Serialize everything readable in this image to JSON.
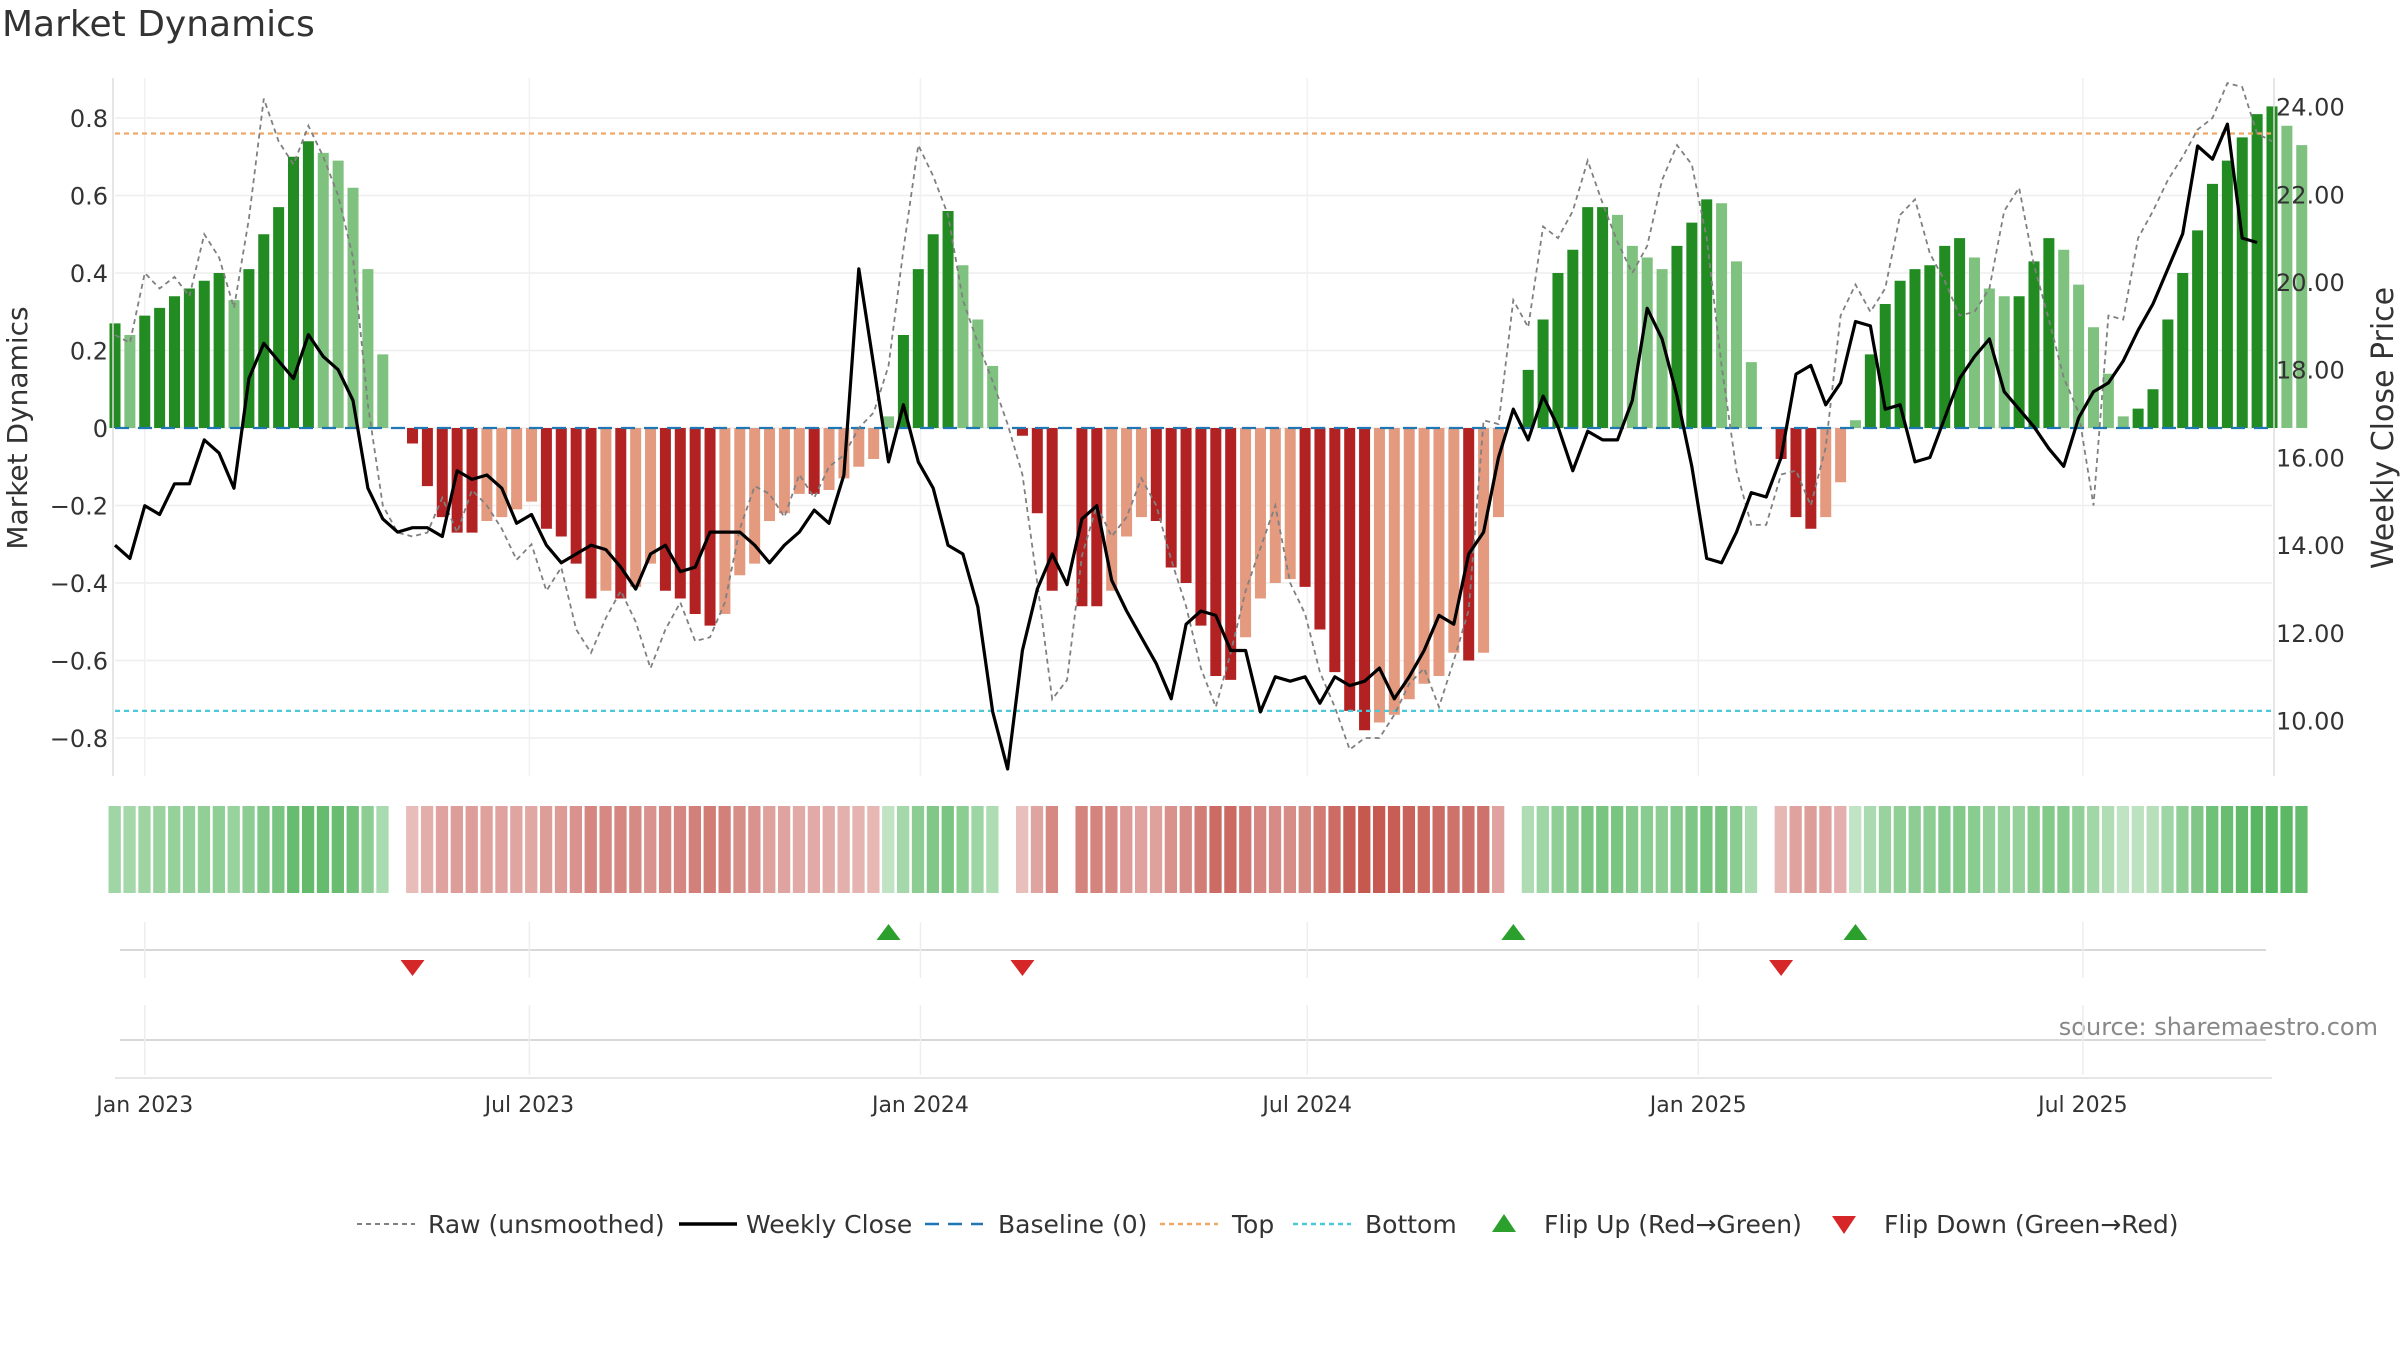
{
  "chart_data": {
    "type": "bar",
    "title": "Market Dynamics",
    "source_note": "source: sharemaestro.com",
    "left_axis": {
      "label": "Market Dynamics",
      "ticks": [
        "0.8",
        "0.6",
        "0.4",
        "0.2",
        "0",
        "−0.2",
        "−0.4",
        "−0.6",
        "−0.8"
      ],
      "tick_values": [
        0.8,
        0.6,
        0.4,
        0.2,
        0,
        -0.2,
        -0.4,
        -0.6,
        -0.8
      ],
      "range": [
        -0.9,
        0.9
      ]
    },
    "right_axis": {
      "label": "Weekly Close Price",
      "ticks": [
        "24.00",
        "22.00",
        "20.00",
        "18.00",
        "16.00",
        "14.00",
        "12.00",
        "10.00"
      ],
      "tick_values": [
        24,
        22,
        20,
        18,
        16,
        14,
        12,
        10
      ],
      "range": [
        8.74,
        24.65
      ]
    },
    "x_axis": {
      "ticks": [
        "Jan 2023",
        "Jul 2023",
        "Jan 2024",
        "Jul 2024",
        "Jan 2025",
        "Jul 2025"
      ],
      "tick_dates": [
        "2023-01-01",
        "2023-07-01",
        "2024-01-01",
        "2024-07-01",
        "2025-01-01",
        "2025-07-01"
      ],
      "range": [
        "2022-12-18",
        "2025-09-28"
      ]
    },
    "levels": {
      "top": 0.76,
      "bottom": -0.73,
      "baseline": 0
    },
    "start_week": "2022-12-18",
    "bars": [
      0.27,
      0.24,
      0.29,
      0.31,
      0.34,
      0.36,
      0.38,
      0.4,
      0.33,
      0.41,
      0.5,
      0.57,
      0.7,
      0.74,
      0.71,
      0.69,
      0.62,
      0.41,
      0.19,
      0.0,
      -0.04,
      -0.15,
      -0.23,
      -0.27,
      -0.27,
      -0.24,
      -0.23,
      -0.21,
      -0.19,
      -0.26,
      -0.28,
      -0.35,
      -0.44,
      -0.42,
      -0.44,
      -0.41,
      -0.35,
      -0.42,
      -0.44,
      -0.48,
      -0.51,
      -0.48,
      -0.38,
      -0.35,
      -0.24,
      -0.22,
      -0.17,
      -0.17,
      -0.16,
      -0.13,
      -0.1,
      -0.08,
      0.03,
      0.24,
      0.41,
      0.5,
      0.56,
      0.42,
      0.28,
      0.16,
      0.0,
      -0.02,
      -0.22,
      -0.42,
      0.0,
      -0.46,
      -0.46,
      -0.42,
      -0.28,
      -0.23,
      -0.24,
      -0.36,
      -0.4,
      -0.51,
      -0.64,
      -0.65,
      -0.54,
      -0.44,
      -0.4,
      -0.39,
      -0.41,
      -0.52,
      -0.63,
      -0.73,
      -0.78,
      -0.76,
      -0.74,
      -0.7,
      -0.66,
      -0.64,
      -0.58,
      -0.6,
      -0.58,
      -0.23,
      0.0,
      0.15,
      0.28,
      0.4,
      0.46,
      0.57,
      0.57,
      0.55,
      0.47,
      0.44,
      0.41,
      0.47,
      0.53,
      0.59,
      0.58,
      0.43,
      0.17,
      0.0,
      -0.08,
      -0.23,
      -0.26,
      -0.23,
      -0.14,
      0.02,
      0.19,
      0.32,
      0.38,
      0.41,
      0.42,
      0.47,
      0.49,
      0.44,
      0.36,
      0.34,
      0.34,
      0.43,
      0.49,
      0.46,
      0.37,
      0.26,
      0.14,
      0.03,
      0.05,
      0.1,
      0.28,
      0.4,
      0.51,
      0.63,
      0.69,
      0.75,
      0.81,
      0.83,
      0.78,
      0.73
    ],
    "raw": [
      0.24,
      0.22,
      0.4,
      0.36,
      0.39,
      0.34,
      0.5,
      0.44,
      0.31,
      0.54,
      0.85,
      0.74,
      0.68,
      0.78,
      0.7,
      0.6,
      0.44,
      0.06,
      -0.2,
      -0.27,
      -0.28,
      -0.27,
      -0.18,
      -0.27,
      -0.16,
      -0.2,
      -0.26,
      -0.34,
      -0.3,
      -0.42,
      -0.36,
      -0.52,
      -0.58,
      -0.49,
      -0.42,
      -0.5,
      -0.62,
      -0.52,
      -0.45,
      -0.55,
      -0.54,
      -0.45,
      -0.26,
      -0.15,
      -0.17,
      -0.23,
      -0.12,
      -0.18,
      -0.1,
      -0.07,
      0.0,
      0.04,
      0.16,
      0.46,
      0.73,
      0.65,
      0.55,
      0.33,
      0.22,
      0.12,
      0.01,
      -0.12,
      -0.4,
      -0.7,
      -0.65,
      -0.33,
      -0.2,
      -0.28,
      -0.23,
      -0.13,
      -0.2,
      -0.34,
      -0.46,
      -0.62,
      -0.72,
      -0.58,
      -0.42,
      -0.31,
      -0.2,
      -0.4,
      -0.48,
      -0.63,
      -0.72,
      -0.83,
      -0.8,
      -0.8,
      -0.74,
      -0.66,
      -0.62,
      -0.72,
      -0.6,
      -0.47,
      0.02,
      0.01,
      0.33,
      0.26,
      0.52,
      0.49,
      0.56,
      0.69,
      0.58,
      0.48,
      0.4,
      0.47,
      0.64,
      0.73,
      0.68,
      0.49,
      0.16,
      -0.11,
      -0.25,
      -0.25,
      -0.12,
      -0.11,
      -0.2,
      -0.05,
      0.29,
      0.37,
      0.3,
      0.36,
      0.55,
      0.59,
      0.45,
      0.38,
      0.29,
      0.3,
      0.36,
      0.56,
      0.62,
      0.42,
      0.28,
      0.13,
      0.04,
      -0.2,
      0.29,
      0.28,
      0.49,
      0.56,
      0.64,
      0.7,
      0.77,
      0.8,
      0.89,
      0.88,
      0.76,
      0.74
    ],
    "close": [
      14.0,
      13.7,
      14.9,
      14.7,
      15.4,
      15.4,
      16.4,
      16.1,
      15.3,
      17.8,
      18.6,
      18.2,
      17.8,
      18.8,
      18.3,
      18.0,
      17.3,
      15.3,
      14.6,
      14.3,
      14.4,
      14.4,
      14.2,
      15.7,
      15.5,
      15.6,
      15.3,
      14.5,
      14.7,
      14.0,
      13.6,
      13.8,
      14.0,
      13.9,
      13.5,
      13.0,
      13.8,
      14.0,
      13.4,
      13.5,
      14.3,
      14.3,
      14.3,
      14.0,
      13.6,
      14.0,
      14.3,
      14.8,
      14.5,
      15.6,
      20.3,
      18.1,
      15.9,
      17.2,
      15.9,
      15.3,
      14.0,
      13.8,
      12.6,
      10.2,
      8.9,
      11.6,
      13.0,
      13.8,
      13.1,
      14.6,
      14.9,
      13.2,
      12.5,
      11.9,
      11.3,
      10.5,
      12.2,
      12.5,
      12.4,
      11.6,
      11.6,
      10.2,
      11.0,
      10.9,
      11.0,
      10.4,
      11.0,
      10.8,
      10.9,
      11.2,
      10.5,
      11.0,
      11.6,
      12.4,
      12.2,
      13.8,
      14.3,
      16.0,
      17.1,
      16.4,
      17.4,
      16.7,
      15.7,
      16.6,
      16.4,
      16.4,
      17.3,
      19.4,
      18.7,
      17.4,
      15.8,
      13.7,
      13.6,
      14.3,
      15.2,
      15.1,
      16.0,
      17.9,
      18.1,
      17.2,
      17.7,
      19.1,
      19.0,
      17.1,
      17.2,
      15.9,
      16.0,
      16.9,
      17.8,
      18.3,
      18.7,
      17.5,
      17.1,
      16.7,
      16.2,
      15.8,
      16.9,
      17.5,
      17.7,
      18.2,
      18.9,
      19.5,
      20.3,
      21.1,
      23.1,
      22.8,
      23.6,
      21.0,
      20.9
    ],
    "flip_up_weeks": [
      52,
      94,
      117
    ],
    "flip_down_weeks": [
      20,
      61,
      112
    ],
    "strength_strip": "one colour cell per weekly bar; green when positive, red when negative, intensity by magnitude",
    "legend": [
      {
        "label": "Raw (unsmoothed)",
        "style": "dashed-gray"
      },
      {
        "label": "Weekly Close",
        "style": "solid-black"
      },
      {
        "label": "Baseline (0)",
        "style": "dashed-blue"
      },
      {
        "label": "Top",
        "style": "dotted-orange"
      },
      {
        "label": "Bottom",
        "style": "dotted-cyan"
      },
      {
        "label": "Flip Up (Red→Green)",
        "style": "up-triangle-green"
      },
      {
        "label": "Flip Down (Green→Red)",
        "style": "down-triangle-red"
      }
    ],
    "colors": {
      "bar_pos_strong": "#228b22",
      "bar_pos_weak": "#7fc17f",
      "bar_neg_strong": "#b22222",
      "bar_neg_weak": "#e39a7f",
      "top_line": "#f0a868",
      "bottom_line": "#4cc9d8",
      "baseline": "#1f77b4",
      "flip_up": "#2ca02c",
      "flip_down": "#d62728"
    },
    "legend_placement": "bottom-center",
    "grid": true
  }
}
